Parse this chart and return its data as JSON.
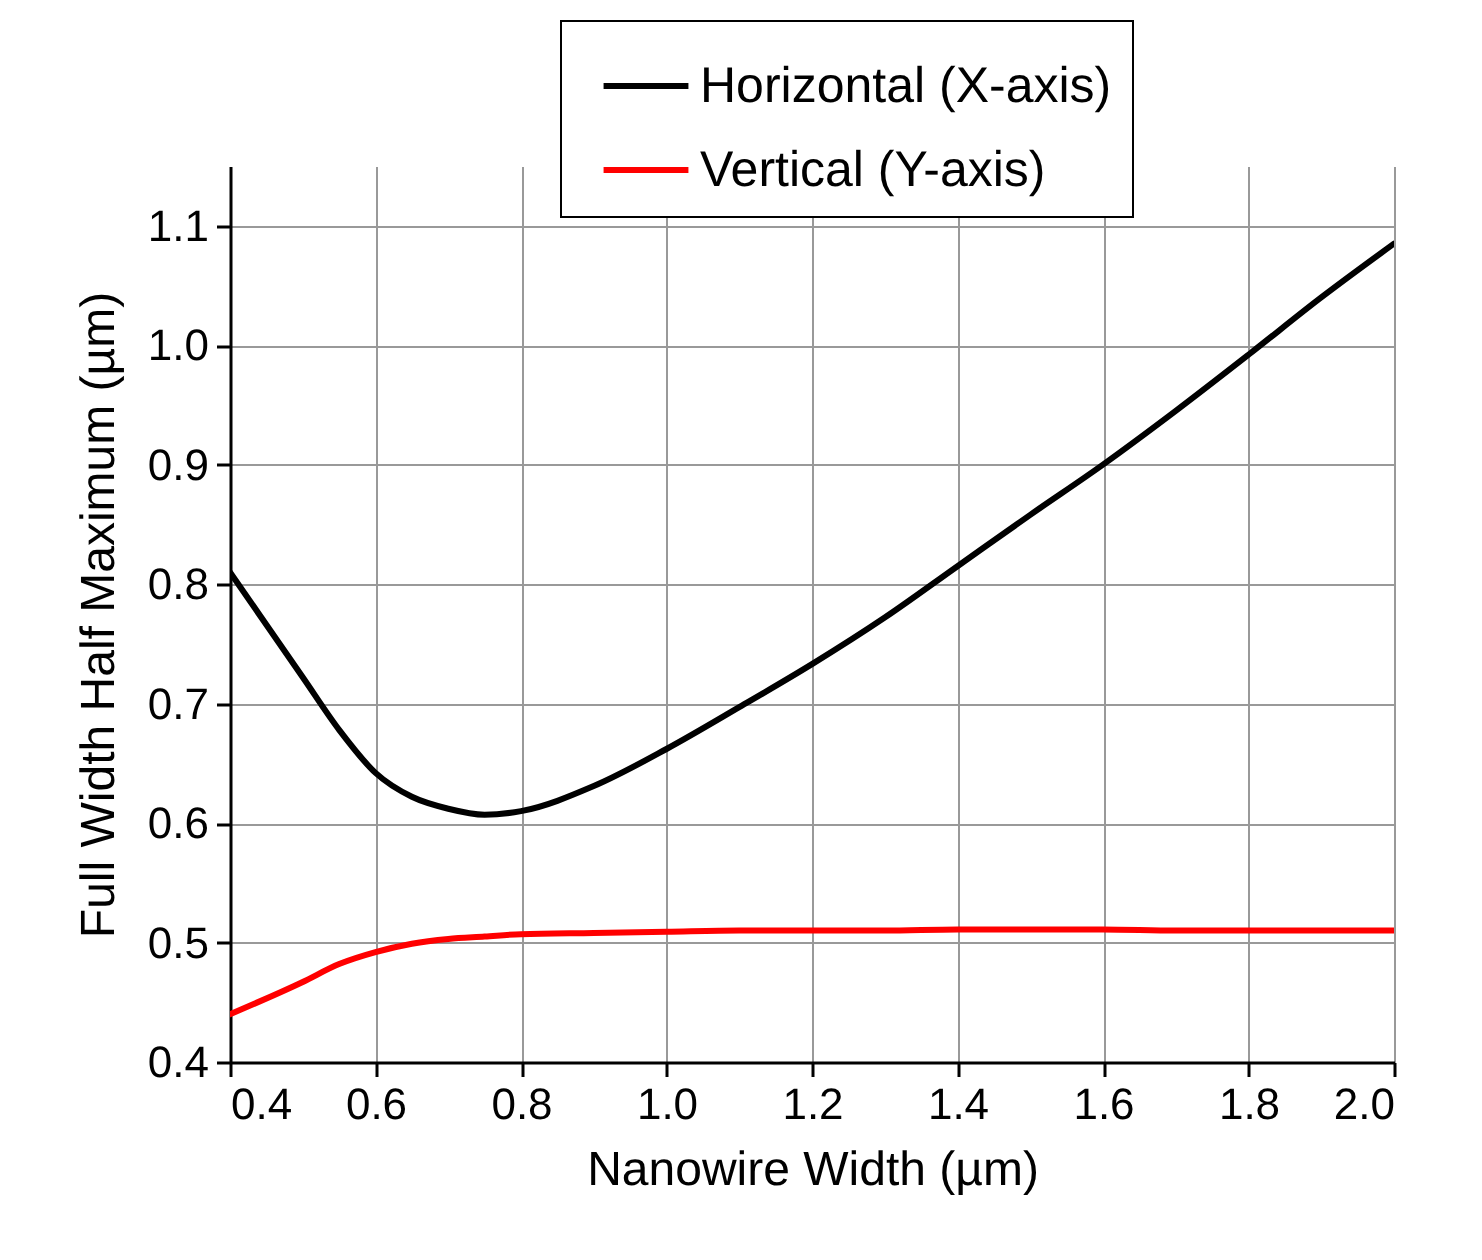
{
  "chart_data": {
    "type": "line",
    "xlabel": "Nanowire Width (µm)",
    "ylabel": "Full Width Half Maximum (µm)",
    "x": [
      0.4,
      0.5,
      0.55,
      0.6,
      0.65,
      0.7,
      0.75,
      0.8,
      0.9,
      1.0,
      1.1,
      1.2,
      1.3,
      1.4,
      1.5,
      1.6,
      1.7,
      1.8,
      1.9,
      2.0
    ],
    "series": [
      {
        "name": "Horizontal (X-axis)",
        "color": "#000000",
        "values": [
          0.81,
          0.722,
          0.678,
          0.642,
          0.622,
          0.612,
          0.607,
          0.61,
          0.631,
          0.662,
          0.697,
          0.733,
          0.772,
          0.815,
          0.858,
          0.9,
          0.945,
          0.992,
          1.04,
          1.085
        ]
      },
      {
        "name": "Vertical (Y-axis)",
        "color": "#ff0000",
        "values": [
          0.44,
          0.467,
          0.482,
          0.492,
          0.499,
          0.503,
          0.505,
          0.507,
          0.508,
          0.509,
          0.51,
          0.51,
          0.51,
          0.511,
          0.511,
          0.511,
          0.51,
          0.51,
          0.51,
          0.51
        ]
      }
    ],
    "xlim": [
      0.4,
      2.0
    ],
    "xticks": [
      0.4,
      0.6,
      0.8,
      {
        "value": 1,
        "label": "1.0"
      },
      1.2,
      1.4,
      1.6,
      1.8,
      {
        "value": 2,
        "label": "2.0"
      }
    ],
    "ylim": [
      0.4,
      1.15
    ],
    "yticks": [
      0.4,
      0.5,
      0.6,
      0.7,
      0.8,
      0.9,
      {
        "value": 1,
        "label": "1.0"
      },
      1.1
    ],
    "grid": true,
    "legend": "top right",
    "line_style": "solid"
  }
}
